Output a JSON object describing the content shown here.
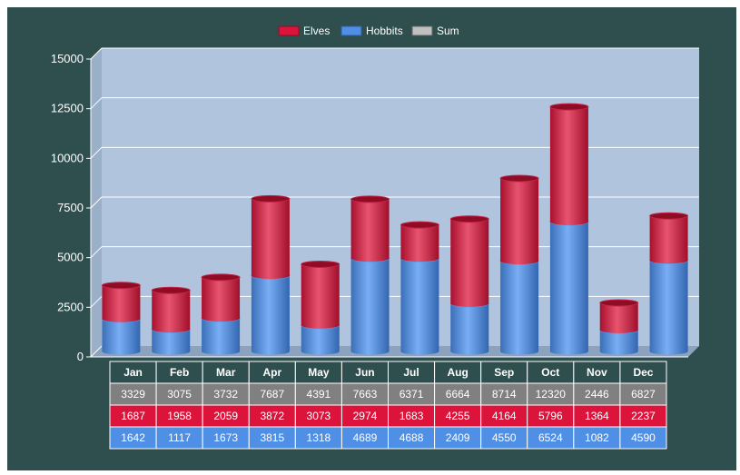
{
  "chart_data": {
    "type": "bar",
    "stacked": true,
    "categories": [
      "Jan",
      "Feb",
      "Mar",
      "Apr",
      "May",
      "Jun",
      "Jul",
      "Aug",
      "Sep",
      "Oct",
      "Nov",
      "Dec"
    ],
    "series": [
      {
        "name": "Hobbits",
        "color": "#4f8fe6",
        "values": [
          1642,
          1117,
          1673,
          3815,
          1318,
          4689,
          4688,
          2409,
          4550,
          6524,
          1082,
          4590
        ]
      },
      {
        "name": "Elves",
        "color": "#dc143c",
        "values": [
          1687,
          1958,
          2059,
          3872,
          3073,
          2974,
          1683,
          4255,
          4164,
          5796,
          1364,
          2237
        ]
      }
    ],
    "sum": {
      "name": "Sum",
      "color": "#c0c0c0",
      "values": [
        3329,
        3075,
        3732,
        7687,
        4391,
        7663,
        6371,
        6664,
        8714,
        12320,
        2446,
        6827
      ]
    },
    "legend": [
      "Elves",
      "Hobbits",
      "Sum"
    ],
    "legend_placement": "top-center",
    "yticks": [
      0,
      2500,
      5000,
      7500,
      10000,
      12500,
      15000
    ],
    "ylim": [
      0,
      15000
    ],
    "grid": true,
    "data_table": true,
    "colors": {
      "background": "#2f4f4f",
      "plot_area": "#b0c4de",
      "table_sum_row": "#808080"
    }
  }
}
